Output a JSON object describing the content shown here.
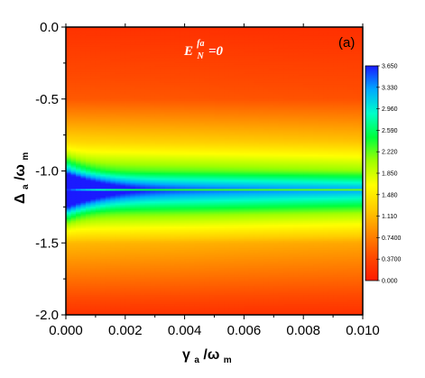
{
  "chart_data": {
    "type": "heatmap",
    "panel_label": "(a)",
    "annotation": {
      "main": "E",
      "sub": "N",
      "sup": "fa",
      "rest": "=0"
    },
    "xlabel": {
      "main": "γ",
      "sub1": "a",
      "slash": "/ω",
      "sub2": "m"
    },
    "ylabel": {
      "main": "Δ",
      "sub1": "a",
      "slash": "/ω",
      "sub2": "m"
    },
    "xlim": [
      0.0,
      0.01
    ],
    "ylim": [
      -2.0,
      0.0
    ],
    "x_ticks": [
      "0.000",
      "0.002",
      "0.004",
      "0.006",
      "0.008",
      "0.010"
    ],
    "y_ticks": [
      "0.0",
      "-0.5",
      "-1.0",
      "-1.5",
      "-2.0"
    ],
    "colorbar": {
      "ticks": [
        "3.650",
        "3.330",
        "2.960",
        "2.590",
        "2.220",
        "1.850",
        "1.480",
        "1.110",
        "0.7400",
        "0.3700",
        "0.000"
      ],
      "colors": [
        "#1a1aff",
        "#00aaff",
        "#00ffc8",
        "#00ff3c",
        "#a0ff00",
        "#ffff00",
        "#ffcc00",
        "#ff8a00",
        "#ff4a00",
        "#ff1a00"
      ],
      "range": [
        0.0,
        3.65
      ]
    },
    "field": {
      "peak_delta": -1.13,
      "peak_value": 3.65,
      "dark_line_delta": -1.13,
      "description_values": [
        {
          "delta": 0.0,
          "value": 0.2
        },
        {
          "delta": -0.5,
          "value": 0.5
        },
        {
          "delta": -0.8,
          "value": 1.3
        },
        {
          "delta": -1.0,
          "value": 2.3
        },
        {
          "delta": -1.13,
          "value": 3.65
        },
        {
          "delta": -1.3,
          "value": 2.2
        },
        {
          "delta": -1.5,
          "value": 1.1
        },
        {
          "delta": -2.0,
          "value": 0.2
        }
      ]
    }
  }
}
